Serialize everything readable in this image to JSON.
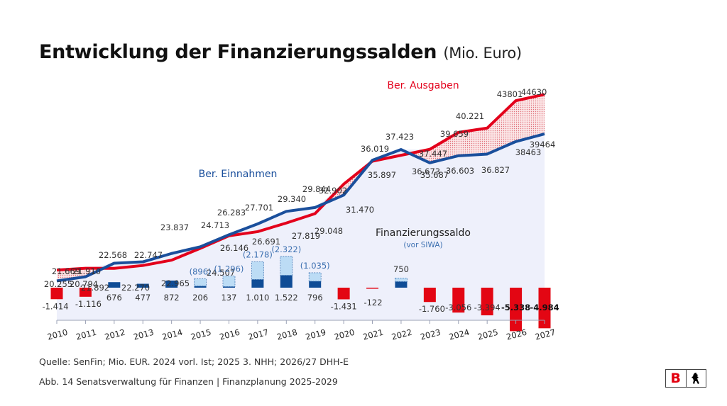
{
  "title": {
    "main": "Entwicklung der Finanzierungssalden",
    "unit": "(Mio. Euro)"
  },
  "colors": {
    "ausgaben": "#e3001b",
    "einnahmen": "#1a4f9c",
    "saldo_positive": "#0f4c96",
    "saldo_negative": "#e30613",
    "siwa": "#bcdcf5",
    "siwa_border": "#4a7db8",
    "siwa_label": "#3b6fb0",
    "area_fill": "#eef0fb",
    "gap_fill": "#f3c1c4",
    "text": "#333333"
  },
  "chart_data": {
    "type": "line",
    "title": "Entwicklung der Finanzierungssalden (Mio. Euro)",
    "xlabel": "",
    "ylabel": "Mio. Euro",
    "grid": false,
    "categories": [
      "2010",
      "2011",
      "2012",
      "2013",
      "2014",
      "2015",
      "2016",
      "2017",
      "2018",
      "2019",
      "2020",
      "2021",
      "2022",
      "2023",
      "2024",
      "2025",
      "2026",
      "2027"
    ],
    "series": [
      {
        "name": "Ber. Ausgaben",
        "type": "line",
        "values": [
          21669,
          21910,
          21892,
          22270,
          22965,
          24507,
          26146,
          26691,
          27819,
          29048,
          32902,
          35897,
          36673,
          37447,
          39659,
          40221,
          43801,
          44630
        ],
        "labels": [
          "21.669",
          "21.910",
          "21.892",
          "22.270",
          "22.965",
          "24.507",
          "26.146",
          "26.691",
          "27.819",
          "29.048",
          "32.902",
          "35.897",
          "36.673",
          "37.447",
          "39.659",
          "40.221",
          "43801",
          "44630"
        ]
      },
      {
        "name": "Ber. Einnahmen",
        "type": "line",
        "values": [
          20255,
          20794,
          22568,
          22747,
          23837,
          24713,
          26283,
          27701,
          29340,
          29844,
          31470,
          36019,
          37423,
          35687,
          36603,
          36827,
          38463,
          39464
        ],
        "labels": [
          "20.255",
          "20.794",
          "22.568",
          "22.747",
          "23.837",
          "24.713",
          "26.283",
          "27.701",
          "29.340",
          "29.844",
          "31.470",
          "36.019",
          "37.423",
          "35.687",
          "36.603",
          "36.827",
          "38463",
          "39464"
        ]
      },
      {
        "name": "Finanzierungssaldo",
        "subtitle": "(vor SIWA)",
        "type": "bar",
        "values": [
          -1414,
          -1116,
          676,
          477,
          872,
          206,
          137,
          1010,
          1522,
          796,
          -1431,
          -122,
          750,
          -1760,
          -3056,
          -3394,
          -5338,
          -4984
        ],
        "labels": [
          "-1.414",
          "-1.116",
          "676",
          "477",
          "872",
          "206",
          "137",
          "1.010",
          "1.522",
          "796",
          "-1.431",
          "-122",
          "750",
          "-1.760",
          "-3.056",
          "-3.394",
          "-5.338",
          "-4.984"
        ]
      },
      {
        "name": "SIWA",
        "type": "bar-stacked-dotted",
        "values": [
          null,
          null,
          null,
          null,
          null,
          896,
          1296,
          2178,
          2322,
          1035,
          null,
          null,
          null,
          null,
          null,
          null,
          null,
          null
        ],
        "labels": [
          "",
          "",
          "",
          "",
          "",
          "(896)",
          "(1.296)",
          "(2.178)",
          "(2.322)",
          "(1.035)",
          "",
          "",
          "",
          "",
          "",
          "",
          "",
          ""
        ]
      }
    ],
    "line_range": [
      19000,
      46000
    ],
    "bar_range": [
      -6000,
      3000
    ],
    "annotations": [
      "Ber. Ausgaben",
      "Ber. Einnahmen",
      "Finanzierungssaldo",
      "(vor SIWA)"
    ]
  },
  "footer": {
    "source": "Quelle: SenFin; Mio. EUR. 2024 vorl. Ist; 2025 3. NHH; 2026/27 DHH-E",
    "caption": "Abb. 14   Senatsverwaltung für Finanzen | Finanzplanung 2025-2029"
  },
  "logo": {
    "letter": "B",
    "emblem": "bear-icon"
  }
}
